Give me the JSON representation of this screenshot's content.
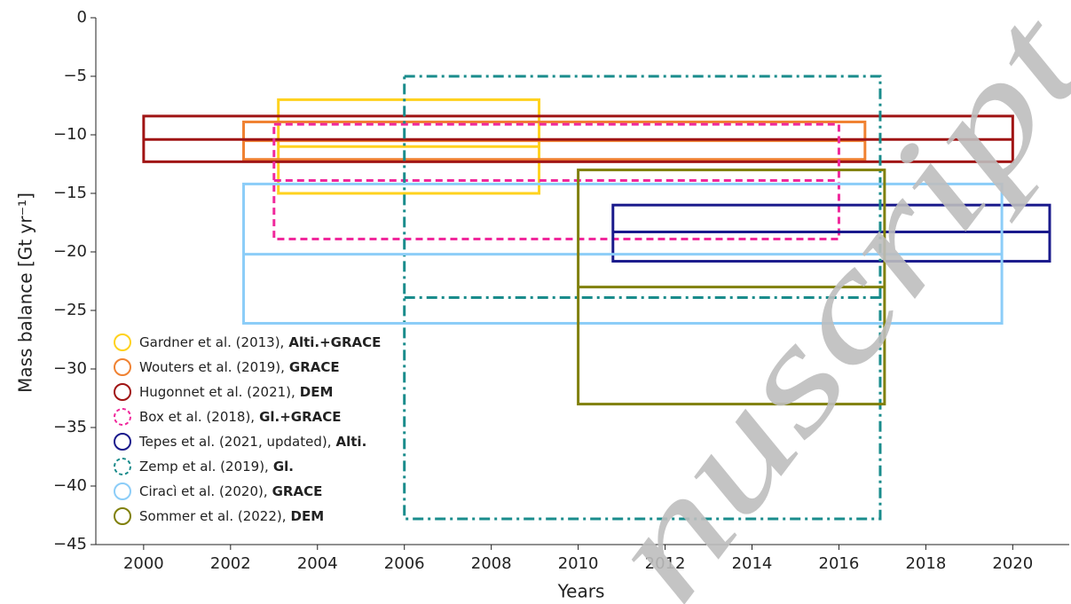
{
  "chart_data": {
    "type": "range-box",
    "xlabel": "Years",
    "ylabel": "Mass balance [Gt yr⁻¹]",
    "watermark": "nuscript",
    "xlim": [
      1998.9,
      2021.3
    ],
    "ylim": [
      -45,
      0
    ],
    "xticks": [
      2000,
      2002,
      2004,
      2006,
      2008,
      2010,
      2012,
      2014,
      2016,
      2018,
      2020
    ],
    "yticks": [
      0,
      {
        "value": -5,
        "label": "−5"
      },
      {
        "value": -10,
        "label": "−10"
      },
      {
        "value": -15,
        "label": "−15"
      },
      {
        "value": -20,
        "label": "−20"
      },
      {
        "value": -25,
        "label": "−25"
      },
      {
        "value": -30,
        "label": "−30"
      },
      {
        "value": -35,
        "label": "−35"
      },
      {
        "value": -40,
        "label": "−40"
      },
      {
        "value": -45,
        "label": "−45"
      }
    ],
    "series": [
      {
        "name": "Gardner et al. (2013),",
        "method": "Alti.+GRACE",
        "color": "#ffd21e",
        "dash": "solid",
        "start": 2003.1,
        "end": 2009.1,
        "low": -15,
        "mean": -11,
        "high": -7
      },
      {
        "name": "Wouters et al. (2019),",
        "method": "GRACE",
        "color": "#f08232",
        "dash": "solid",
        "start": 2002.3,
        "end": 2016.6,
        "low": -12.1,
        "mean": -10.5,
        "high": -8.9
      },
      {
        "name": "Hugonnet et al. (2021),",
        "method": "DEM",
        "color": "#a01414",
        "dash": "solid",
        "start": 2000,
        "end": 2020,
        "low": -12.3,
        "mean": -10.4,
        "high": -8.4
      },
      {
        "name": "Box et al. (2018),",
        "method": "Gl.+GRACE",
        "color": "#f0289c",
        "dash": "dashed",
        "start": 2003,
        "end": 2016,
        "low": -18.9,
        "mean": -13.9,
        "high": -9.1
      },
      {
        "name": "Tepes et al. (2021, updated),",
        "method": "Alti.",
        "color": "#1a1a8c",
        "dash": "solid",
        "start": 2010.8,
        "end": 2020.85,
        "low": -20.8,
        "mean": -18.3,
        "high": -16
      },
      {
        "name": "Zemp et al. (2019),",
        "method": "Gl.",
        "color": "#1a8c8c",
        "dash": "dashdot",
        "start": 2006,
        "end": 2016.95,
        "low": -42.8,
        "mean": -23.9,
        "high": -5
      },
      {
        "name": "Ciracì et al. (2020),",
        "method": "GRACE",
        "color": "#8ccdf8",
        "dash": "solid",
        "start": 2002.3,
        "end": 2019.75,
        "low": -26.1,
        "mean": -20.2,
        "high": -14.2
      },
      {
        "name": "Sommer et al. (2022),",
        "method": "DEM",
        "color": "#80800a",
        "dash": "solid",
        "start": 2010,
        "end": 2017.05,
        "low": -33,
        "mean": -23,
        "high": -13
      }
    ]
  }
}
